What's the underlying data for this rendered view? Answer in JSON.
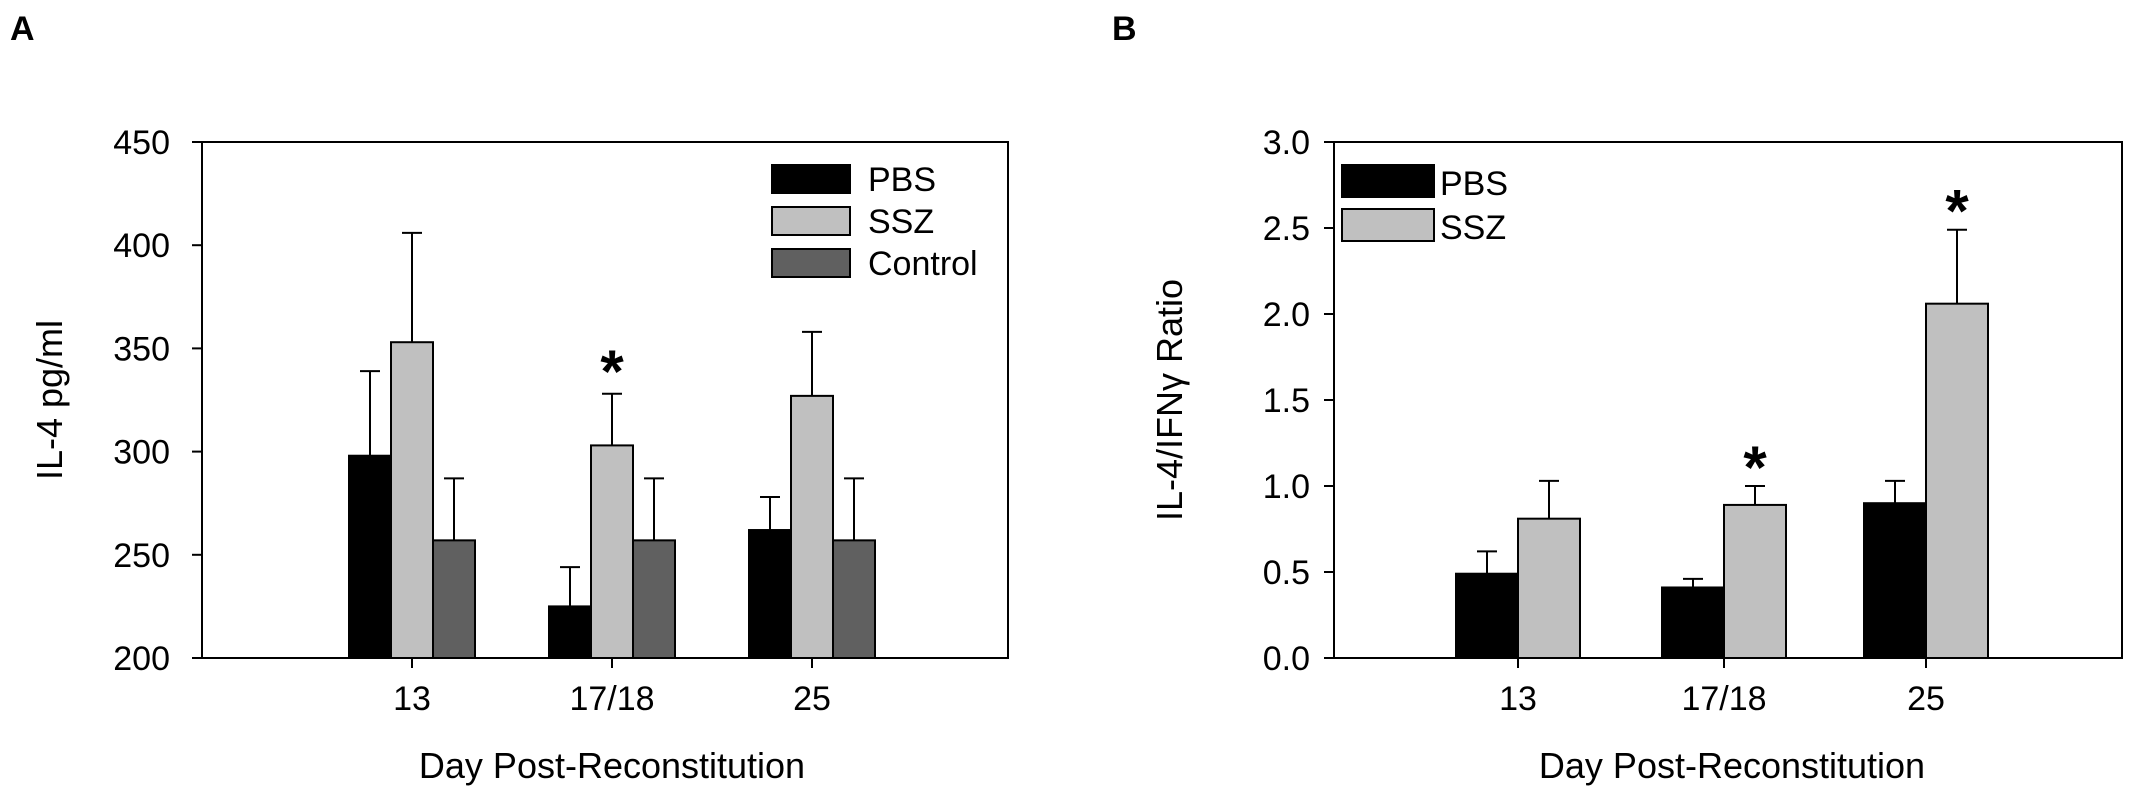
{
  "chart_data": [
    {
      "type": "bar",
      "panel_label": "A",
      "categories": [
        "13",
        "17/18",
        "25"
      ],
      "series": [
        {
          "name": "PBS",
          "values": [
            298,
            225,
            262
          ],
          "error": [
            41,
            19,
            16
          ],
          "color": "#000000"
        },
        {
          "name": "SSZ",
          "values": [
            353,
            303,
            327
          ],
          "error": [
            53,
            25,
            31
          ],
          "color": "#c0c0c0"
        },
        {
          "name": "Control",
          "values": [
            257,
            257,
            257
          ],
          "error": [
            30,
            30,
            30
          ],
          "color": "#606060"
        }
      ],
      "xlabel": "Day Post-Reconstitution",
      "ylabel": "IL-4 pg/ml",
      "ylim": [
        200,
        450
      ],
      "yticks": [
        "200",
        "250",
        "300",
        "350",
        "400",
        "450"
      ],
      "significance": [
        {
          "category": "17/18",
          "series": "SSZ",
          "symbol": "*"
        }
      ],
      "legend_position": "top-right",
      "grid": false
    },
    {
      "type": "bar",
      "panel_label": "B",
      "categories": [
        "13",
        "17/18",
        "25"
      ],
      "series": [
        {
          "name": "PBS",
          "values": [
            0.49,
            0.41,
            0.9
          ],
          "error": [
            0.13,
            0.05,
            0.13
          ],
          "color": "#000000"
        },
        {
          "name": "SSZ",
          "values": [
            0.81,
            0.89,
            2.06
          ],
          "error": [
            0.22,
            0.11,
            0.43
          ],
          "color": "#c0c0c0"
        }
      ],
      "xlabel": "Day Post-Reconstitution",
      "ylabel": "IL-4/IFNγ Ratio",
      "ylim": [
        0,
        3
      ],
      "yticks": [
        "0.0",
        "0.5",
        "1.0",
        "1.5",
        "2.0",
        "2.5",
        "3.0"
      ],
      "significance": [
        {
          "category": "17/18",
          "series": "SSZ",
          "symbol": "*"
        },
        {
          "category": "25",
          "series": "SSZ",
          "symbol": "*"
        }
      ],
      "legend_position": "top-left",
      "grid": false
    }
  ]
}
